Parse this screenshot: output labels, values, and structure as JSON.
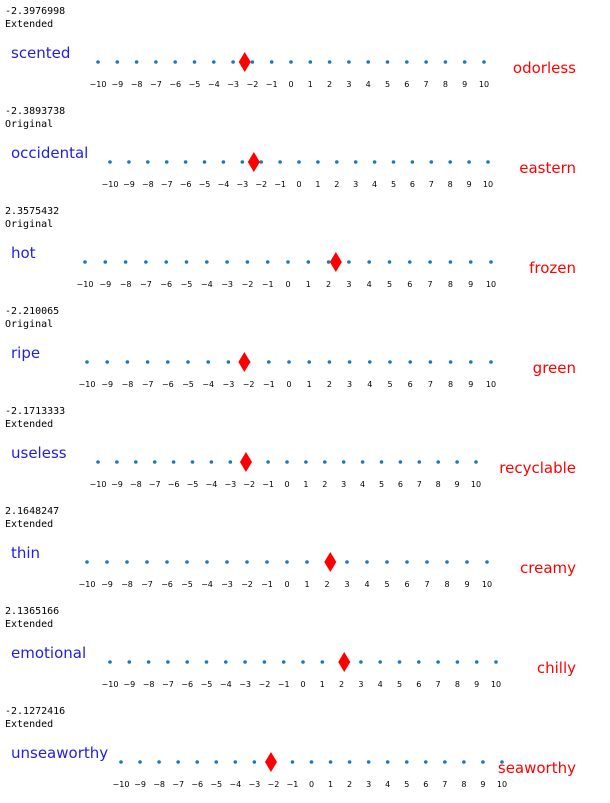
{
  "colors": {
    "left_word": "#1f1fe6",
    "right_word": "#ff0000",
    "dot": "#1f77b4",
    "marker": "#ff0000"
  },
  "chart_data": [
    {
      "type": "scatter",
      "score_text": "-2.3976998",
      "source": "Extended",
      "left_word": "scented",
      "right_word": "odorless",
      "value": -2.3976998,
      "ticks": [
        "−10",
        "−9",
        "−8",
        "−7",
        "−6",
        "−5",
        "−4",
        "−3",
        "−2",
        "−1",
        "0",
        "1",
        "2",
        "3",
        "4",
        "5",
        "6",
        "7",
        "8",
        "9",
        "10"
      ],
      "xlim": [
        -10,
        10
      ]
    },
    {
      "type": "scatter",
      "score_text": "-2.3893738",
      "source": "Original",
      "left_word": "occidental",
      "right_word": "eastern",
      "value": -2.3893738,
      "ticks": [
        "−10",
        "−9",
        "−8",
        "−7",
        "−6",
        "−5",
        "−4",
        "−3",
        "−2",
        "−1",
        "0",
        "1",
        "2",
        "3",
        "4",
        "5",
        "6",
        "7",
        "8",
        "9",
        "10"
      ],
      "xlim": [
        -10,
        10
      ]
    },
    {
      "type": "scatter",
      "score_text": "2.3575432",
      "source": "Original",
      "left_word": "hot",
      "right_word": "frozen",
      "value": 2.3575432,
      "ticks": [
        "−10",
        "−9",
        "−8",
        "−7",
        "−6",
        "−5",
        "−4",
        "−3",
        "−2",
        "−1",
        "0",
        "1",
        "2",
        "3",
        "4",
        "5",
        "6",
        "7",
        "8",
        "9",
        "10"
      ],
      "xlim": [
        -10,
        10
      ]
    },
    {
      "type": "scatter",
      "score_text": "-2.210065",
      "source": "Original",
      "left_word": "ripe",
      "right_word": "green",
      "value": -2.210065,
      "ticks": [
        "−10",
        "−9",
        "−8",
        "−7",
        "−6",
        "−5",
        "−4",
        "−3",
        "−2",
        "−1",
        "0",
        "1",
        "2",
        "3",
        "4",
        "5",
        "6",
        "7",
        "8",
        "9",
        "10"
      ],
      "xlim": [
        -10,
        10
      ]
    },
    {
      "type": "scatter",
      "score_text": "-2.1713333",
      "source": "Extended",
      "left_word": "useless",
      "right_word": "recyclable",
      "value": -2.1713333,
      "ticks": [
        "−10",
        "−9",
        "−8",
        "−7",
        "−6",
        "−5",
        "−4",
        "−3",
        "−2",
        "−1",
        "0",
        "1",
        "2",
        "3",
        "4",
        "5",
        "6",
        "7",
        "8",
        "9",
        "10"
      ],
      "xlim": [
        -10,
        10
      ]
    },
    {
      "type": "scatter",
      "score_text": "2.1648247",
      "source": "Extended",
      "left_word": "thin",
      "right_word": "creamy",
      "value": 2.1648247,
      "ticks": [
        "−10",
        "−9",
        "−8",
        "−7",
        "−6",
        "−5",
        "−4",
        "−3",
        "−2",
        "−1",
        "0",
        "1",
        "2",
        "3",
        "4",
        "5",
        "6",
        "7",
        "8",
        "9",
        "10"
      ],
      "xlim": [
        -10,
        10
      ]
    },
    {
      "type": "scatter",
      "score_text": "2.1365166",
      "source": "Extended",
      "left_word": "emotional",
      "right_word": "chilly",
      "value": 2.1365166,
      "ticks": [
        "−10",
        "−9",
        "−8",
        "−7",
        "−6",
        "−5",
        "−4",
        "−3",
        "−2",
        "−1",
        "0",
        "1",
        "2",
        "3",
        "4",
        "5",
        "6",
        "7",
        "8",
        "9",
        "10"
      ],
      "xlim": [
        -10,
        10
      ]
    },
    {
      "type": "scatter",
      "score_text": "-2.1272416",
      "source": "Extended",
      "left_word": "unseaworthy",
      "right_word": "seaworthy",
      "value": -2.1272416,
      "ticks": [
        "−10",
        "−9",
        "−8",
        "−7",
        "−6",
        "−5",
        "−4",
        "−3",
        "−2",
        "−1",
        "0",
        "1",
        "2",
        "3",
        "4",
        "5",
        "6",
        "7",
        "8",
        "9",
        "10"
      ],
      "xlim": [
        -10,
        10
      ]
    }
  ]
}
